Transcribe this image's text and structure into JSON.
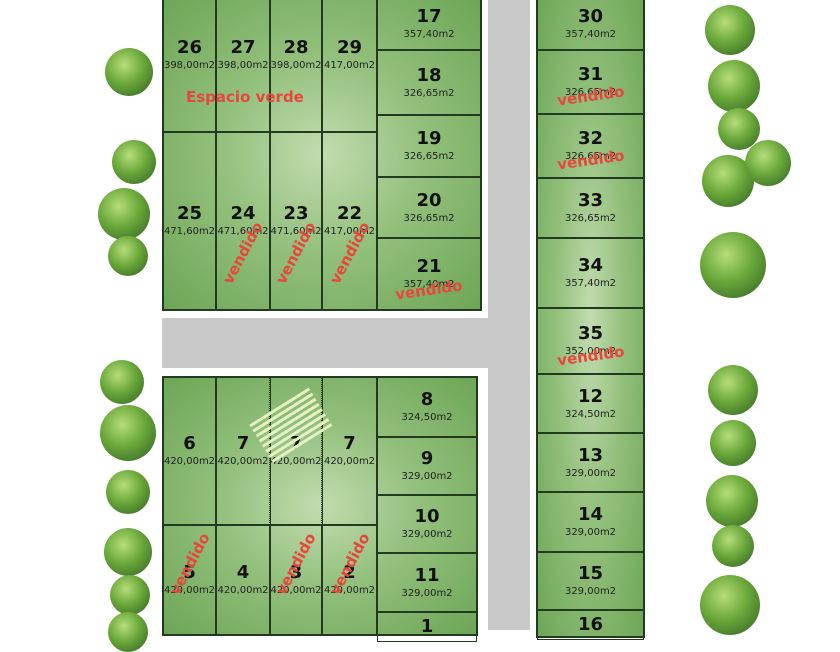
{
  "labels": {
    "green_space": "Espacio verde",
    "sold": "vendido"
  },
  "colors": {
    "sold_text": "#e8463c",
    "lot_green": "#93c07c",
    "road": "#c9c9c9"
  },
  "lots": [
    {
      "number": "26",
      "area": "398,00m2",
      "sold": false
    },
    {
      "number": "27",
      "area": "398,00m2",
      "sold": false
    },
    {
      "number": "28",
      "area": "398,00m2",
      "sold": false
    },
    {
      "number": "29",
      "area": "417,00m2",
      "sold": false
    },
    {
      "number": "25",
      "area": "471,60m2",
      "sold": false
    },
    {
      "number": "24",
      "area": "471,60m2",
      "sold": true
    },
    {
      "number": "23",
      "area": "471,60m2",
      "sold": true
    },
    {
      "number": "22",
      "area": "417,00m2",
      "sold": true
    },
    {
      "number": "17",
      "area": "357,40m2",
      "sold": false
    },
    {
      "number": "18",
      "area": "326,65m2",
      "sold": false
    },
    {
      "number": "19",
      "area": "326,65m2",
      "sold": false
    },
    {
      "number": "20",
      "area": "326,65m2",
      "sold": false
    },
    {
      "number": "21",
      "area": "357,40m2",
      "sold": true
    },
    {
      "number": "30",
      "area": "357,40m2",
      "sold": false
    },
    {
      "number": "31",
      "area": "326,65m2",
      "sold": true
    },
    {
      "number": "32",
      "area": "326,65m2",
      "sold": true
    },
    {
      "number": "33",
      "area": "326,65m2",
      "sold": false
    },
    {
      "number": "34",
      "area": "357,40m2",
      "sold": false
    },
    {
      "number": "35",
      "area": "352,00m2",
      "sold": true
    },
    {
      "number": "12",
      "area": "324,50m2",
      "sold": false
    },
    {
      "number": "13",
      "area": "329,00m2",
      "sold": false
    },
    {
      "number": "14",
      "area": "329,00m2",
      "sold": false
    },
    {
      "number": "15",
      "area": "329,00m2",
      "sold": false
    },
    {
      "number": "16",
      "area": "",
      "sold": false
    },
    {
      "number": "6",
      "area": "420,00m2",
      "sold": false
    },
    {
      "number": "7",
      "area": "420,00m2",
      "sold": false
    },
    {
      "number": "7",
      "area": "420,00m2",
      "sold": false
    },
    {
      "number": "7",
      "area": "420,00m2",
      "sold": false
    },
    {
      "number": "5",
      "area": "420,00m2",
      "sold": true
    },
    {
      "number": "4",
      "area": "420,00m2",
      "sold": false
    },
    {
      "number": "3",
      "area": "420,00m2",
      "sold": true
    },
    {
      "number": "2",
      "area": "420,00m2",
      "sold": true
    },
    {
      "number": "8",
      "area": "324,50m2",
      "sold": false
    },
    {
      "number": "9",
      "area": "329,00m2",
      "sold": false
    },
    {
      "number": "10",
      "area": "329,00m2",
      "sold": false
    },
    {
      "number": "11",
      "area": "329,00m2",
      "sold": false
    },
    {
      "number": "1",
      "area": "",
      "sold": false
    }
  ]
}
